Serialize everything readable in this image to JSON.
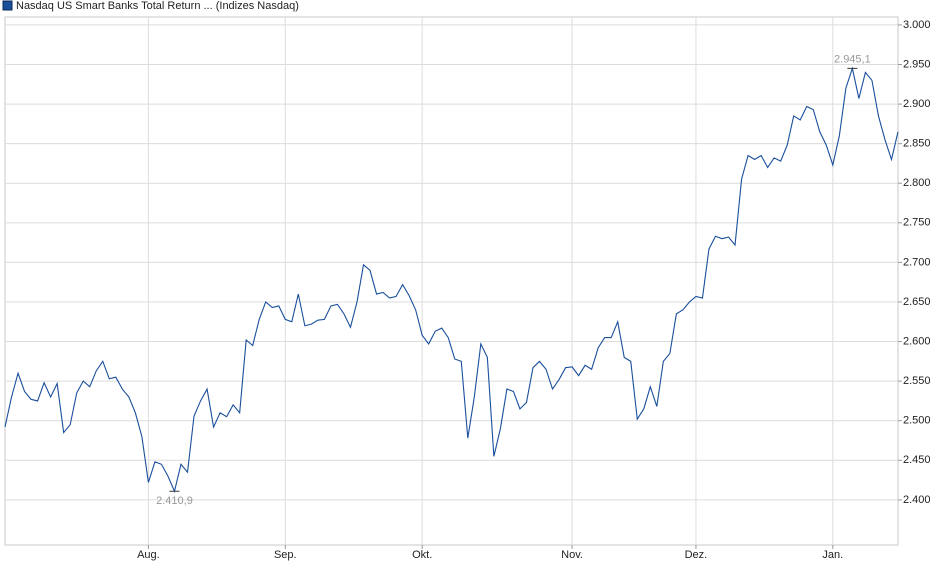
{
  "chart_data": {
    "type": "line",
    "title": "Nasdaq US Smart Banks Total Return ... (Indizes Nasdaq)",
    "series": [
      {
        "name": "Nasdaq US Smart Banks Total Return ... (Indizes Nasdaq)",
        "color": "#1a4f9c",
        "values": [
          2492,
          2530,
          2560,
          2537,
          2527,
          2525,
          2548,
          2530,
          2547,
          2485,
          2495,
          2535,
          2550,
          2543,
          2563,
          2575,
          2553,
          2555,
          2540,
          2530,
          2510,
          2480,
          2422,
          2448,
          2445,
          2430,
          2410.9,
          2445,
          2435,
          2506,
          2525,
          2540,
          2492,
          2510,
          2505,
          2520,
          2510,
          2602,
          2595,
          2628,
          2650,
          2643,
          2645,
          2628,
          2625,
          2660,
          2620,
          2622,
          2627,
          2628,
          2645,
          2647,
          2635,
          2618,
          2650,
          2697,
          2690,
          2660,
          2662,
          2655,
          2657,
          2672,
          2658,
          2640,
          2608,
          2597,
          2613,
          2617,
          2605,
          2578,
          2575,
          2478,
          2530,
          2597,
          2580,
          2455,
          2490,
          2540,
          2537,
          2515,
          2523,
          2567,
          2575,
          2565,
          2540,
          2552,
          2567,
          2568,
          2557,
          2570,
          2565,
          2592,
          2605,
          2605,
          2625,
          2580,
          2575,
          2502,
          2515,
          2543,
          2518,
          2575,
          2585,
          2635,
          2640,
          2650,
          2657,
          2655,
          2717,
          2733,
          2730,
          2732,
          2722,
          2805,
          2835,
          2830,
          2835,
          2820,
          2832,
          2828,
          2848,
          2885,
          2880,
          2897,
          2893,
          2865,
          2848,
          2823,
          2860,
          2920,
          2945.1,
          2907,
          2940,
          2930,
          2885,
          2855,
          2830,
          2865
        ]
      }
    ],
    "annotations": [
      {
        "value": 2410.9,
        "label": "2.410,9"
      },
      {
        "value": 2945.1,
        "label": "2.945,1"
      }
    ],
    "xlim": [
      0,
      137
    ],
    "xticks": [
      {
        "value": 22,
        "label": "Aug."
      },
      {
        "value": 43,
        "label": "Sep."
      },
      {
        "value": 64,
        "label": "Okt."
      },
      {
        "value": 87,
        "label": "Nov."
      },
      {
        "value": 106,
        "label": "Dez."
      },
      {
        "value": 127,
        "label": "Jan."
      }
    ],
    "ylim": [
      2343,
      3010
    ],
    "yticks": [
      {
        "value": 2400,
        "label": "2.400"
      },
      {
        "value": 2450,
        "label": "2.450"
      },
      {
        "value": 2500,
        "label": "2.500"
      },
      {
        "value": 2550,
        "label": "2.550"
      },
      {
        "value": 2600,
        "label": "2.600"
      },
      {
        "value": 2650,
        "label": "2.650"
      },
      {
        "value": 2700,
        "label": "2.700"
      },
      {
        "value": 2750,
        "label": "2.750"
      },
      {
        "value": 2800,
        "label": "2.800"
      },
      {
        "value": 2850,
        "label": "2.850"
      },
      {
        "value": 2900,
        "label": "2.900"
      },
      {
        "value": 2950,
        "label": "2.950"
      },
      {
        "value": 3000,
        "label": "3.000"
      }
    ],
    "grid": true
  }
}
